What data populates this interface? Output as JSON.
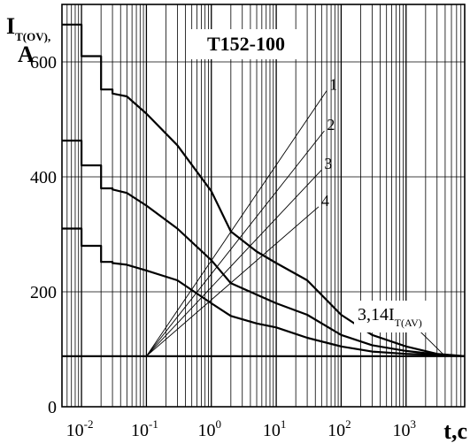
{
  "chart_data": {
    "type": "line",
    "title": "T152-100",
    "ylabel": {
      "main": "I",
      "sub": "T(OV),",
      "unit": "A"
    },
    "xlabel": "t,c",
    "xscale": "log",
    "xlim": [
      0.005,
      8000
    ],
    "ylim": [
      0,
      700
    ],
    "x_ticks": [
      {
        "base": "10",
        "exp": "-2",
        "value": 0.01
      },
      {
        "base": "10",
        "exp": "-1",
        "value": 0.1
      },
      {
        "base": "10",
        "exp": "0",
        "value": 1
      },
      {
        "base": "10",
        "exp": "1",
        "value": 10
      },
      {
        "base": "10",
        "exp": "2",
        "value": 100
      },
      {
        "base": "10",
        "exp": "3",
        "value": 1000
      }
    ],
    "y_ticks": [
      {
        "label": "0",
        "value": 0
      },
      {
        "label": "200",
        "value": 200
      },
      {
        "label": "400",
        "value": 400
      },
      {
        "label": "600",
        "value": 600
      }
    ],
    "grid": true,
    "baseline": {
      "value": 88
    },
    "series": [
      {
        "x": [
          0.005,
          0.01,
          0.01,
          0.02,
          0.02,
          0.03,
          0.03,
          0.05,
          0.1,
          0.3,
          1,
          2,
          5,
          10,
          30,
          100,
          300,
          1000,
          3000,
          8000
        ],
        "y": [
          665,
          665,
          610,
          610,
          552,
          552,
          545,
          540,
          510,
          455,
          375,
          305,
          270,
          250,
          220,
          160,
          125,
          105,
          92,
          88
        ]
      },
      {
        "x": [
          0.005,
          0.01,
          0.01,
          0.02,
          0.02,
          0.03,
          0.03,
          0.05,
          0.1,
          0.3,
          1,
          2,
          5,
          10,
          30,
          100,
          300,
          1000,
          3000,
          8000
        ],
        "y": [
          463,
          463,
          420,
          420,
          380,
          380,
          378,
          372,
          350,
          310,
          255,
          215,
          195,
          180,
          160,
          125,
          107,
          97,
          91,
          88
        ]
      },
      {
        "x": [
          0.005,
          0.01,
          0.01,
          0.02,
          0.02,
          0.03,
          0.03,
          0.05,
          0.1,
          0.3,
          1,
          2,
          5,
          10,
          30,
          100,
          300,
          1000,
          3000,
          8000
        ],
        "y": [
          310,
          310,
          280,
          280,
          252,
          252,
          250,
          247,
          237,
          220,
          180,
          158,
          145,
          138,
          120,
          105,
          96,
          92,
          90,
          88
        ]
      }
    ],
    "callouts": [
      {
        "label": "1",
        "from": [
          0.1,
          88
        ],
        "to": [
          60,
          550
        ]
      },
      {
        "label": "2",
        "from": [
          0.1,
          88
        ],
        "to": [
          55,
          480
        ]
      },
      {
        "label": "3",
        "from": [
          0.1,
          88
        ],
        "to": [
          50,
          412
        ]
      },
      {
        "label": "4",
        "from": [
          0.1,
          88
        ],
        "to": [
          45,
          348
        ]
      }
    ],
    "annotation": {
      "text": "3,14I",
      "sub": "T(AV)",
      "from": [
        1000,
        155
      ],
      "to": [
        4000,
        88
      ]
    }
  }
}
